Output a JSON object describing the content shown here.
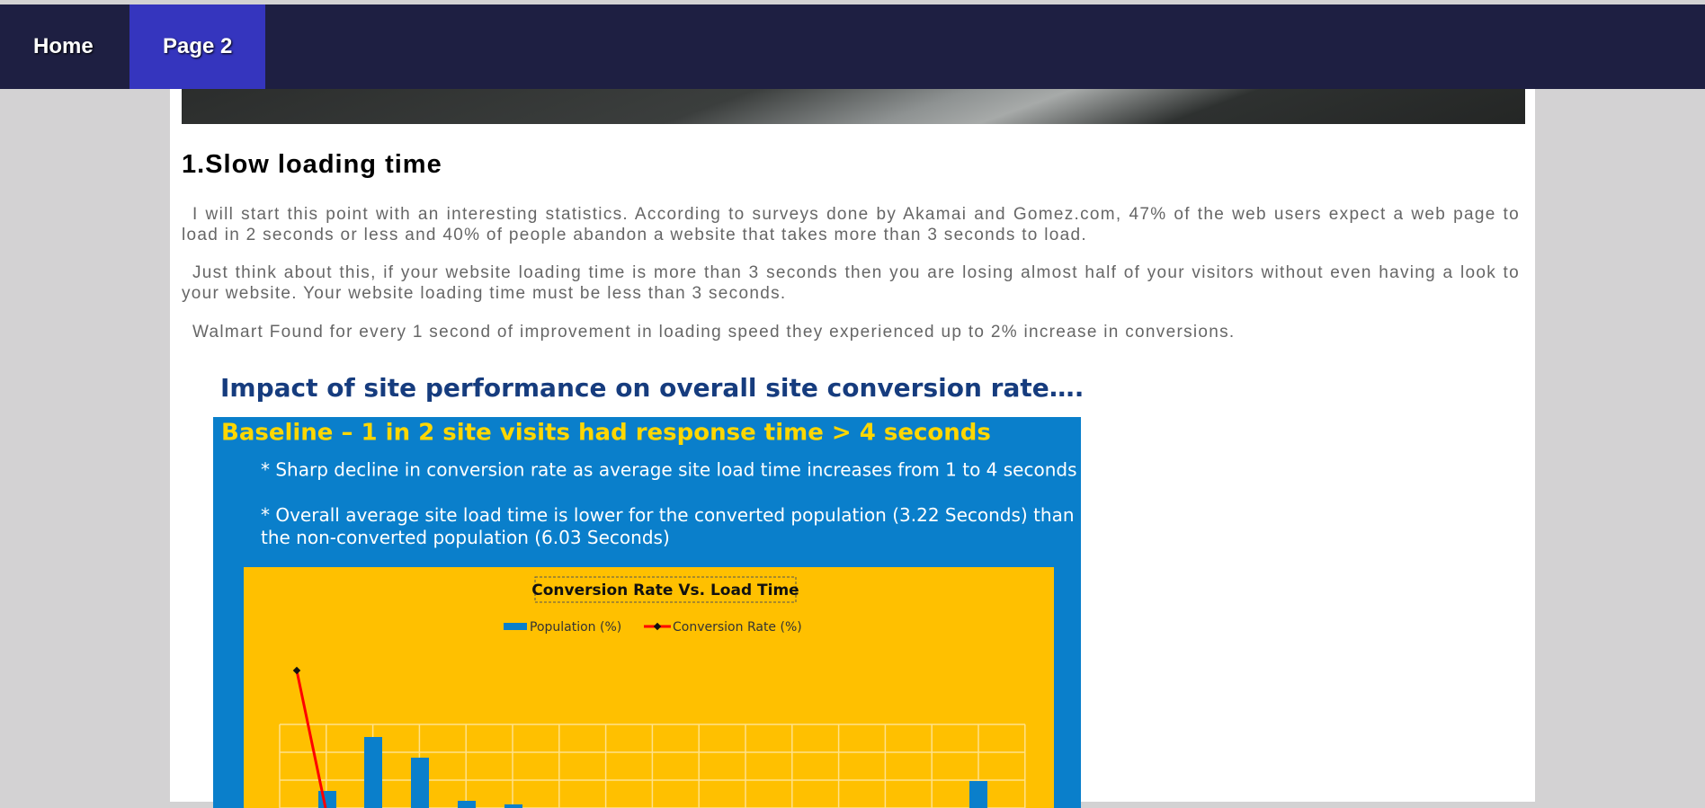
{
  "nav": {
    "items": [
      "Home",
      "Page 2"
    ]
  },
  "article": {
    "heading": "1.Slow loading time",
    "paragraphs": [
      "I will start this point with an interesting statistics. According to surveys done by Akamai and Gomez.com, 47% of the web users expect a web page to load in 2 seconds or less and 40% of people abandon a website that takes more than 3 seconds to load.",
      "Just think about this, if your website loading time is more than 3 seconds then you are losing almost half of your visitors without even having a look to your website. Your website loading time must be less than 3 seconds.",
      "Walmart Found for every 1 second of improvement in loading speed they experienced up to 2% increase in conversions."
    ]
  },
  "figure": {
    "title": "Impact of site performance on overall site conversion rate….",
    "headline": "Baseline – 1 in 2 site visits had response time > 4 seconds",
    "bullets": [
      "* Sharp decline in conversion rate as average site load time increases from 1 to 4 seconds",
      "* Overall average site load time is lower for the converted population (3.22 Seconds) than the non-converted population (6.03 Seconds)"
    ],
    "chart_title": "Conversion Rate Vs. Load Time",
    "legend": [
      "Population (%)",
      "Conversion Rate (%)"
    ]
  }
}
